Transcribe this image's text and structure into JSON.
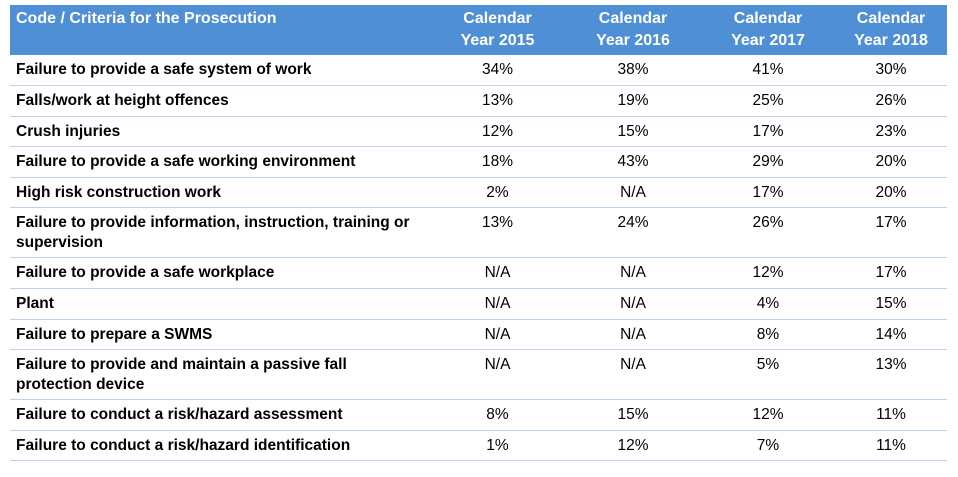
{
  "header": {
    "criteria": "Code / Criteria for the Prosecution",
    "years": [
      {
        "line1": "Calendar",
        "line2": "Year 2015"
      },
      {
        "line1": "Calendar",
        "line2": "Year 2016"
      },
      {
        "line1": "Calendar",
        "line2": "Year 2017"
      },
      {
        "line1": "Calendar",
        "line2": "Year 2018"
      }
    ]
  },
  "rows": [
    {
      "label": "Failure to provide a safe system of work",
      "values": [
        "34%",
        "38%",
        "41%",
        "30%"
      ]
    },
    {
      "label": "Falls/work at height offences",
      "values": [
        "13%",
        "19%",
        "25%",
        "26%"
      ]
    },
    {
      "label": "Crush injuries",
      "values": [
        "12%",
        "15%",
        "17%",
        "23%"
      ]
    },
    {
      "label": "Failure to provide a safe working environment",
      "values": [
        "18%",
        "43%",
        "29%",
        "20%"
      ]
    },
    {
      "label": "High risk construction work",
      "values": [
        "2%",
        "N/A",
        "17%",
        "20%"
      ]
    },
    {
      "label": "Failure to provide information, instruction, training or supervision",
      "values": [
        "13%",
        "24%",
        "26%",
        "17%"
      ]
    },
    {
      "label": "Failure to provide a safe workplace",
      "values": [
        "N/A",
        "N/A",
        "12%",
        "17%"
      ]
    },
    {
      "label": "Plant",
      "values": [
        "N/A",
        "N/A",
        "4%",
        "15%"
      ]
    },
    {
      "label": "Failure to prepare a SWMS",
      "values": [
        "N/A",
        "N/A",
        "8%",
        "14%"
      ]
    },
    {
      "label": "Failure to provide and maintain a passive fall protection device",
      "values": [
        "N/A",
        "N/A",
        "5%",
        "13%"
      ]
    },
    {
      "label": "Failure to conduct a risk/hazard assessment",
      "values": [
        "8%",
        "15%",
        "12%",
        "11%"
      ]
    },
    {
      "label": "Failure to conduct a risk/hazard identification",
      "values": [
        "1%",
        "12%",
        "7%",
        "11%"
      ]
    }
  ]
}
